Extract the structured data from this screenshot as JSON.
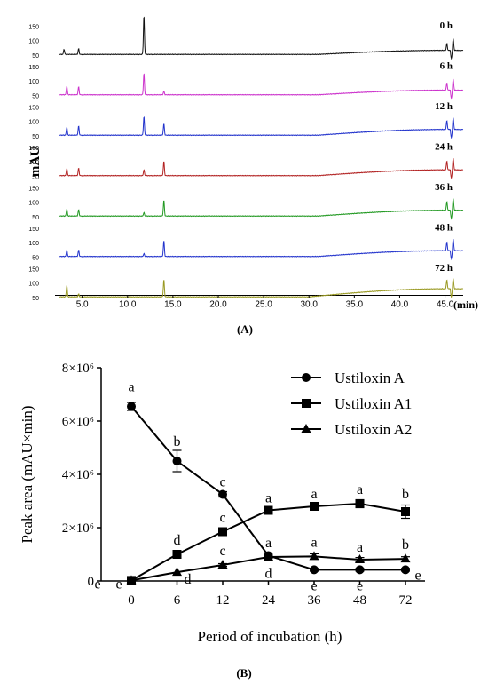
{
  "panel_a": {
    "label": "(A)",
    "chart_data": {
      "type": "line",
      "title": "",
      "ylabel": "mAU",
      "xlabel": "(min)",
      "xlim": [
        2,
        47
      ],
      "x_ticks": [
        5,
        10,
        15,
        20,
        25,
        30,
        35,
        40,
        45
      ],
      "x_tick_labels": [
        "5.0",
        "10.0",
        "15.0",
        "20.0",
        "25.0",
        "30.0",
        "35.0",
        "40.0",
        "45.0"
      ],
      "y_ticks": [
        50,
        100,
        150
      ],
      "ylim": [
        45,
        185
      ],
      "series": [
        {
          "name": "0 h",
          "color": "#111111",
          "peaks": [
            [
              3.0,
              18
            ],
            [
              4.6,
              20
            ],
            [
              11.8,
              135
            ],
            [
              45.2,
              24
            ],
            [
              45.9,
              40
            ]
          ],
          "drift": {
            "start": 31,
            "end": 45,
            "amplitude": 14
          }
        },
        {
          "name": "6 h",
          "color": "#cc33cc",
          "peaks": [
            [
              3.3,
              30
            ],
            [
              4.6,
              28
            ],
            [
              11.8,
              75
            ],
            [
              14.0,
              12
            ],
            [
              45.2,
              25
            ],
            [
              45.9,
              38
            ]
          ],
          "drift": {
            "start": 31,
            "end": 45,
            "amplitude": 16
          }
        },
        {
          "name": "12 h",
          "color": "#2233cc",
          "peaks": [
            [
              3.3,
              28
            ],
            [
              4.6,
              32
            ],
            [
              11.8,
              65
            ],
            [
              14.0,
              40
            ],
            [
              45.2,
              30
            ],
            [
              45.9,
              40
            ]
          ],
          "drift": {
            "start": 31,
            "end": 45,
            "amplitude": 20
          }
        },
        {
          "name": "24 h",
          "color": "#b22222",
          "peaks": [
            [
              3.3,
              25
            ],
            [
              4.6,
              26
            ],
            [
              11.8,
              20
            ],
            [
              14.0,
              50
            ],
            [
              45.2,
              30
            ],
            [
              45.9,
              40
            ]
          ],
          "drift": {
            "start": 31,
            "end": 45,
            "amplitude": 20
          }
        },
        {
          "name": "36 h",
          "color": "#229922",
          "peaks": [
            [
              3.3,
              25
            ],
            [
              4.6,
              22
            ],
            [
              11.8,
              12
            ],
            [
              14.0,
              55
            ],
            [
              45.2,
              30
            ],
            [
              45.9,
              40
            ]
          ],
          "drift": {
            "start": 31,
            "end": 45,
            "amplitude": 20
          }
        },
        {
          "name": "48 h",
          "color": "#2233cc",
          "peaks": [
            [
              3.3,
              22
            ],
            [
              4.6,
              22
            ],
            [
              11.8,
              10
            ],
            [
              14.0,
              55
            ],
            [
              45.2,
              30
            ],
            [
              45.9,
              40
            ]
          ],
          "drift": {
            "start": 31,
            "end": 45,
            "amplitude": 20
          }
        },
        {
          "name": "72 h",
          "color": "#999922",
          "peaks": [
            [
              3.3,
              40
            ],
            [
              4.6,
              10
            ],
            [
              14.0,
              60
            ],
            [
              45.2,
              30
            ],
            [
              45.9,
              35
            ]
          ],
          "drift": {
            "start": 30,
            "end": 45,
            "amplitude": 28
          }
        }
      ]
    }
  },
  "panel_b": {
    "label": "(B)",
    "chart_data": {
      "type": "line",
      "title": "",
      "xlabel": "Period of incubation (h)",
      "ylabel": "Peak area (mAU×min)",
      "categories": [
        "0",
        "6",
        "12",
        "24",
        "36",
        "48",
        "72"
      ],
      "y_ticks": [
        0,
        2,
        4,
        6,
        8
      ],
      "y_tick_labels": [
        "0",
        "2×10⁶",
        "4×10⁶",
        "6×10⁶",
        "8×10⁶"
      ],
      "ylim": [
        0,
        8
      ],
      "y_unit_scale": "×10⁶",
      "legend_position": "top-right",
      "series": [
        {
          "name": "Ustiloxin A",
          "marker": "circle",
          "values": [
            6.55,
            4.5,
            3.25,
            0.95,
            0.42,
            0.42,
            0.42
          ],
          "errors": [
            0.15,
            0.4,
            0.1,
            0.05,
            0.05,
            0.05,
            0.05
          ],
          "letters": [
            "a",
            "b",
            "c",
            "d",
            "e",
            "e",
            "e"
          ]
        },
        {
          "name": "Ustiloxin A1",
          "marker": "square",
          "values": [
            0.02,
            1.0,
            1.85,
            2.65,
            2.8,
            2.9,
            2.6
          ],
          "errors": [
            0.02,
            0.05,
            0.08,
            0.1,
            0.1,
            0.15,
            0.25
          ],
          "letters": [
            "e",
            "d",
            "c",
            "a",
            "a",
            "a",
            "b"
          ]
        },
        {
          "name": "Ustiloxin A2",
          "marker": "triangle",
          "values": [
            0.02,
            0.33,
            0.6,
            0.9,
            0.92,
            0.8,
            0.83
          ],
          "errors": [
            0.02,
            0.03,
            0.05,
            0.05,
            0.1,
            0.08,
            0.08
          ],
          "letters": [
            "e",
            "d",
            "c",
            "a",
            "a",
            "a",
            "b"
          ]
        }
      ]
    }
  }
}
